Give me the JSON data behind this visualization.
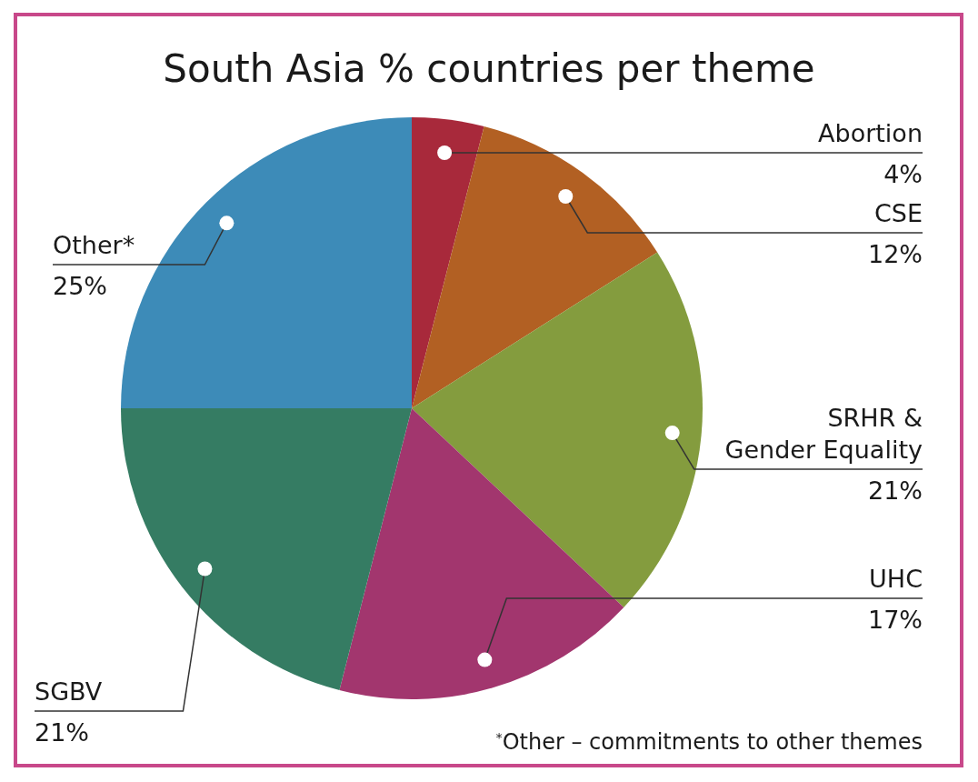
{
  "chart_data": {
    "type": "pie",
    "title": "South Asia % countries per theme",
    "categories": [
      "Abortion",
      "CSE",
      "SRHR & Gender Equality",
      "UHC",
      "SGBV",
      "Other*"
    ],
    "values": [
      4,
      12,
      21,
      17,
      21,
      25
    ],
    "colors": [
      "#a8293b",
      "#b26023",
      "#849c3e",
      "#a2366e",
      "#357c63",
      "#3d8bb8"
    ],
    "value_labels": [
      "4%",
      "12%",
      "21%",
      "17%",
      "21%",
      "25%"
    ],
    "annotations": [
      "$^{*}$Other – commitments to other themes"
    ]
  }
}
